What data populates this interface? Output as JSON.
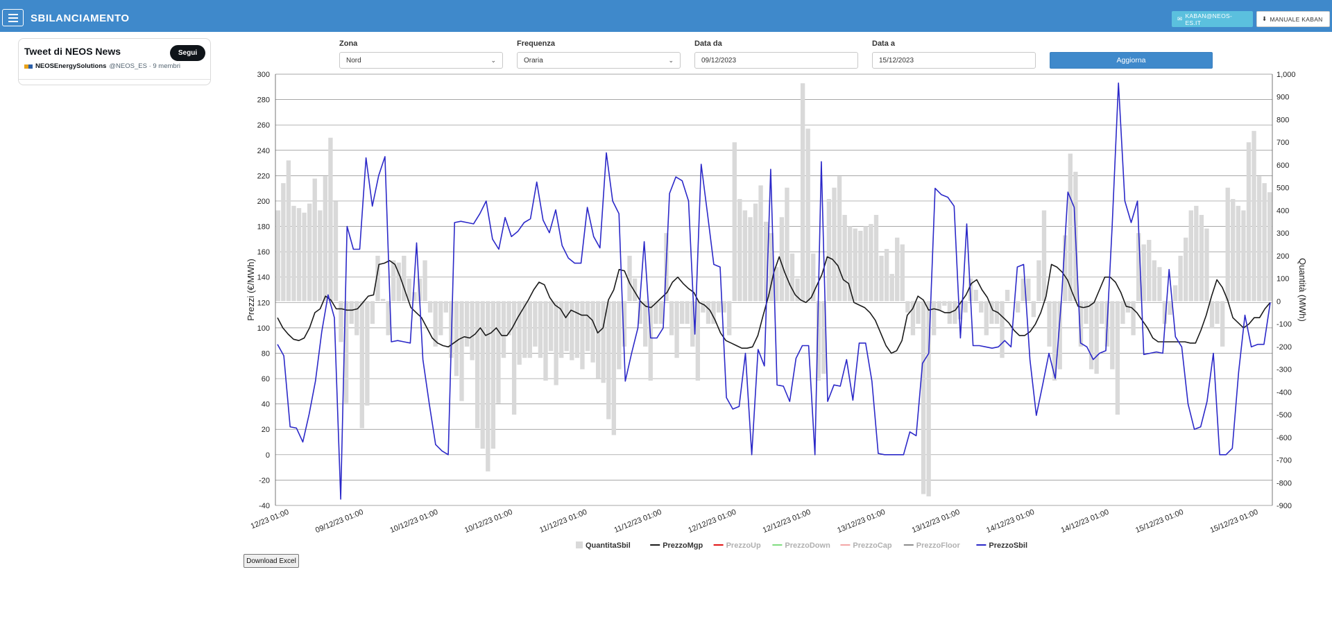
{
  "navbar": {
    "title": "SBILANCIAMENTO",
    "email_button": "KABAN@NEOS-ES.IT",
    "manual_button": "MANUALE KABAN"
  },
  "twitter": {
    "title": "Tweet di NEOS News",
    "follow": "Segui",
    "user_name": "NEOSEnergySolutions",
    "user_meta": "@NEOS_ES · 9 membri"
  },
  "form": {
    "zona": {
      "label": "Zona",
      "value": "Nord"
    },
    "frequenza": {
      "label": "Frequenza",
      "value": "Oraria"
    },
    "data_da": {
      "label": "Data da",
      "value": "09/12/2023"
    },
    "data_a": {
      "label": "Data a",
      "value": "15/12/2023"
    },
    "submit": "Aggiorna"
  },
  "download_button": "Download Excel",
  "chart_data": {
    "type": "bar",
    "ylabel_left": "Prezzi (€/MWh)",
    "ylabel_right": "Quantità (MWh)",
    "ylim_left": [
      -40,
      300
    ],
    "ylim_right": [
      -900,
      1000
    ],
    "y_ticks_left": [
      "300",
      "280",
      "260",
      "240",
      "220",
      "200",
      "180",
      "160",
      "140",
      "120",
      "100",
      "80",
      "60",
      "40",
      "20",
      "0",
      "-20",
      "-40"
    ],
    "y_ticks_right": [
      "1,000",
      "900",
      "800",
      "700",
      "600",
      "500",
      "400",
      "300",
      "200",
      "100",
      "0",
      "-100",
      "-200",
      "-300",
      "-400",
      "-500",
      "-600",
      "-700",
      "-800",
      "-900"
    ],
    "x_labels": [
      "12/23 01:00",
      "09/12/23 01:00",
      "10/12/23 01:00",
      "10/12/23 01:00",
      "11/12/23 01:00",
      "11/12/23 01:00",
      "12/12/23 01:00",
      "12/12/23 01:00",
      "13/12/23 01:00",
      "13/12/23 01:00",
      "14/12/23 01:00",
      "14/12/23 01:00",
      "15/12/23 01:00",
      "15/12/23 01:00"
    ],
    "grid": true,
    "legend_position": "bottom",
    "series": [
      {
        "name": "QuantitaSbil",
        "axis": "right",
        "color": "#d9d9d9",
        "kind": "bar",
        "visible": true,
        "values": [
          400,
          520,
          620,
          420,
          410,
          390,
          430,
          540,
          400,
          550,
          720,
          440,
          -180,
          -450,
          -100,
          -150,
          -560,
          -460,
          -100,
          200,
          10,
          -150,
          180,
          170,
          200,
          100,
          40,
          100,
          180,
          -50,
          -200,
          -150,
          -50,
          -250,
          -330,
          -440,
          -200,
          -260,
          -560,
          -650,
          -750,
          -650,
          -450,
          -250,
          -150,
          -500,
          -280,
          -250,
          -250,
          -200,
          -250,
          -350,
          -220,
          -370,
          -250,
          -220,
          -260,
          -250,
          -300,
          -220,
          -270,
          -340,
          -360,
          -520,
          -590,
          -300,
          -200,
          200,
          100,
          -100,
          -200,
          -350,
          -100,
          -100,
          300,
          -150,
          -250,
          -100,
          -100,
          -200,
          -350,
          -50,
          -100,
          -100,
          -50,
          -50,
          -150,
          700,
          450,
          400,
          370,
          430,
          510,
          350,
          300,
          150,
          370,
          500,
          210,
          100,
          960,
          760,
          210,
          -350,
          -320,
          450,
          500,
          550,
          380,
          330,
          320,
          310,
          330,
          340,
          380,
          200,
          230,
          120,
          280,
          250,
          -50,
          -150,
          -100,
          -850,
          -860,
          -150,
          -40,
          -20,
          -100,
          -100,
          -80,
          -50,
          100,
          50,
          -50,
          -150,
          -100,
          -100,
          -250,
          50,
          0,
          -50,
          100,
          100,
          -70,
          180,
          400,
          -200,
          -350,
          -300,
          290,
          650,
          570,
          -200,
          -100,
          -300,
          -320,
          -100,
          -200,
          -300,
          -500,
          -100,
          -50,
          -150,
          300,
          250,
          270,
          180,
          150,
          -100,
          -60,
          70,
          200,
          280,
          400,
          420,
          380,
          320,
          -120,
          -100,
          -200,
          500,
          450,
          420,
          400,
          700,
          750,
          550,
          520,
          480
        ]
      },
      {
        "name": "PrezzoMgp",
        "axis": "left",
        "color": "#1a1a1a",
        "kind": "line",
        "visible": true,
        "values": [
          108,
          100,
          95,
          91,
          90,
          92,
          100,
          112,
          115,
          125,
          122,
          115,
          115,
          114,
          114,
          115,
          120,
          125,
          126,
          150,
          151,
          153,
          150,
          140,
          128,
          116,
          112,
          108,
          100,
          92,
          88,
          86,
          85,
          88,
          91,
          93,
          92,
          95,
          100,
          94,
          96,
          100,
          94,
          94,
          100,
          108,
          115,
          122,
          130,
          136,
          134,
          124,
          118,
          115,
          108,
          114,
          112,
          110,
          110,
          106,
          96,
          100,
          122,
          130,
          146,
          145,
          135,
          128,
          121,
          117,
          116,
          120,
          124,
          128,
          136,
          140,
          135,
          131,
          128,
          120,
          118,
          114,
          106,
          96,
          90,
          88,
          86,
          84,
          84,
          85,
          94,
          110,
          125,
          144,
          156,
          144,
          134,
          126,
          122,
          120,
          124,
          133,
          142,
          156,
          154,
          149,
          138,
          135,
          120,
          118,
          116,
          112,
          106,
          96,
          86,
          80,
          82,
          90,
          110,
          115,
          125,
          122,
          114,
          115,
          114,
          112,
          112,
          114,
          120,
          126,
          135,
          138,
          130,
          124,
          114,
          112,
          108,
          104,
          98,
          94,
          94,
          97,
          103,
          112,
          125,
          150,
          148,
          144,
          138,
          127,
          117,
          116,
          117,
          120,
          130,
          140,
          140,
          136,
          128,
          117,
          116,
          112,
          106,
          100,
          92,
          89,
          89,
          89,
          89,
          89,
          89,
          88,
          88,
          98,
          110,
          125,
          138,
          132,
          122,
          108,
          104,
          100,
          103,
          108,
          108,
          115,
          120
        ]
      },
      {
        "name": "PrezzoUp",
        "axis": "left",
        "color": "#e11414",
        "kind": "line",
        "visible": false,
        "values": []
      },
      {
        "name": "PrezzoDown",
        "axis": "left",
        "color": "#7fdc7f",
        "kind": "line",
        "visible": false,
        "values": []
      },
      {
        "name": "PrezzoCap",
        "axis": "left",
        "color": "#f4a6a6",
        "kind": "line",
        "visible": false,
        "values": []
      },
      {
        "name": "PrezzoFloor",
        "axis": "left",
        "color": "#8c8c8c",
        "kind": "line",
        "visible": false,
        "values": []
      },
      {
        "name": "PrezzoSbil",
        "axis": "left",
        "color": "#2b28c8",
        "kind": "line",
        "visible": true,
        "values": [
          87,
          78,
          22,
          21,
          10,
          32,
          58,
          97,
          126,
          108,
          -35,
          180,
          162,
          162,
          234,
          196,
          220,
          235,
          89,
          90,
          89,
          88,
          167,
          75,
          40,
          8,
          3,
          0,
          183,
          184,
          183,
          182,
          190,
          200,
          170,
          162,
          187,
          172,
          176,
          183,
          186,
          215,
          185,
          175,
          193,
          165,
          155,
          151,
          151,
          195,
          172,
          163,
          238,
          200,
          190,
          58,
          80,
          100,
          168,
          92,
          92,
          100,
          206,
          219,
          216,
          200,
          95,
          229,
          190,
          150,
          148,
          45,
          36,
          38,
          80,
          0,
          83,
          70,
          225,
          55,
          54,
          42,
          76,
          86,
          86,
          0,
          231,
          42,
          55,
          54,
          75,
          43,
          88,
          88,
          58,
          1,
          0,
          0,
          0,
          0,
          18,
          15,
          72,
          80,
          210,
          205,
          203,
          196,
          92,
          182,
          86,
          86,
          85,
          84,
          85,
          90,
          85,
          148,
          150,
          75,
          31,
          55,
          80,
          60,
          124,
          207,
          195,
          88,
          85,
          75,
          80,
          82,
          180,
          293,
          200,
          183,
          200,
          79,
          80,
          81,
          80,
          146,
          93,
          85,
          40,
          20,
          22,
          42,
          80,
          0,
          0,
          5,
          65,
          110,
          85,
          87,
          87,
          120
        ]
      }
    ]
  }
}
